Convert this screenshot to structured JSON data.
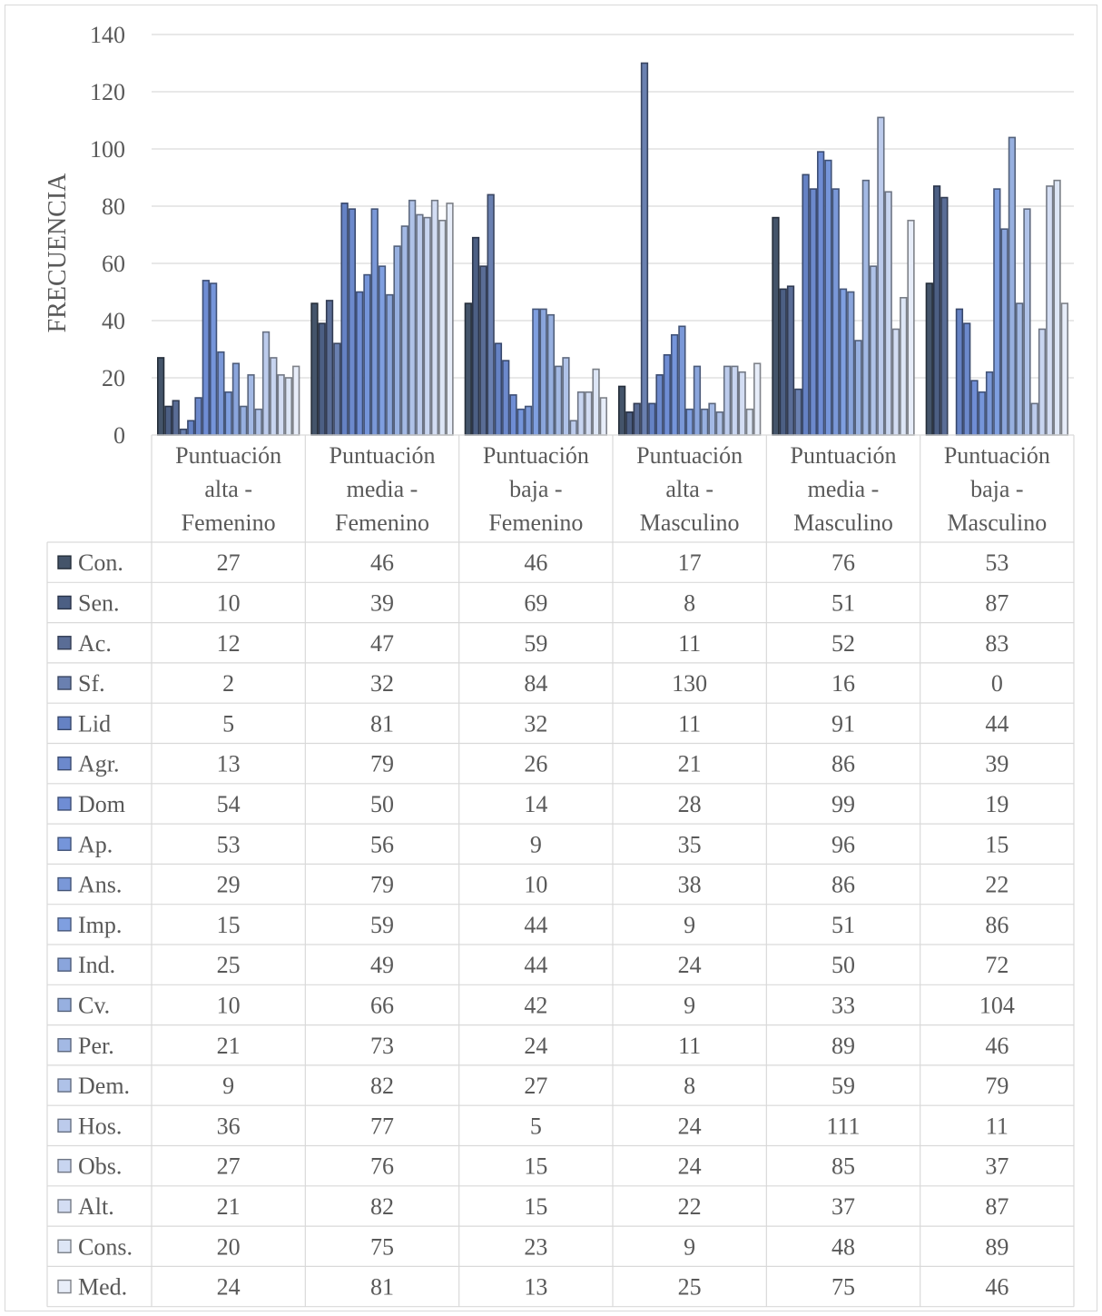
{
  "chart_data": {
    "type": "bar",
    "title": "",
    "xlabel": "",
    "ylabel": "FRECUENCIA",
    "ylim": [
      0,
      140
    ],
    "yticks": [
      0,
      20,
      40,
      60,
      80,
      100,
      120,
      140
    ],
    "grid": true,
    "legend": "data table below chart",
    "categories": [
      [
        "Puntuación",
        "alta -",
        "Femenino"
      ],
      [
        "Puntuación",
        "media -",
        "Femenino"
      ],
      [
        "Puntuación",
        "baja -",
        "Femenino"
      ],
      [
        "Puntuación",
        "alta -",
        "Masculino"
      ],
      [
        "Puntuación",
        "media -",
        "Masculino"
      ],
      [
        "Puntuación",
        "baja -",
        "Masculino"
      ]
    ],
    "series": [
      {
        "name": "Con.",
        "color": "#44546a",
        "values": [
          27,
          46,
          46,
          17,
          76,
          53
        ]
      },
      {
        "name": "Sen.",
        "color": "#4c5f84",
        "values": [
          10,
          39,
          69,
          8,
          51,
          87
        ]
      },
      {
        "name": "Ac.",
        "color": "#5a6d96",
        "values": [
          12,
          47,
          59,
          11,
          52,
          83
        ]
      },
      {
        "name": "Sf.",
        "color": "#6a80b0",
        "values": [
          2,
          32,
          84,
          130,
          16,
          0
        ]
      },
      {
        "name": "Lid",
        "color": "#6582c4",
        "values": [
          5,
          81,
          32,
          11,
          91,
          44
        ]
      },
      {
        "name": "Agr.",
        "color": "#6c89cc",
        "values": [
          13,
          79,
          26,
          21,
          86,
          39
        ]
      },
      {
        "name": "Dom",
        "color": "#6f8dd4",
        "values": [
          54,
          50,
          14,
          28,
          99,
          19
        ]
      },
      {
        "name": "Ap.",
        "color": "#7595da",
        "values": [
          53,
          56,
          9,
          35,
          96,
          15
        ]
      },
      {
        "name": "Ans.",
        "color": "#7a98d8",
        "values": [
          29,
          79,
          10,
          38,
          86,
          22
        ]
      },
      {
        "name": "Imp.",
        "color": "#7f9fe0",
        "values": [
          15,
          59,
          44,
          9,
          51,
          86
        ]
      },
      {
        "name": "Ind.",
        "color": "#8aa5dc",
        "values": [
          25,
          49,
          44,
          24,
          50,
          72
        ]
      },
      {
        "name": "Cv.",
        "color": "#97b0e0",
        "values": [
          10,
          66,
          42,
          9,
          33,
          104
        ]
      },
      {
        "name": "Per.",
        "color": "#a3b9e4",
        "values": [
          21,
          73,
          24,
          11,
          89,
          46
        ]
      },
      {
        "name": "Dem.",
        "color": "#afc2e8",
        "values": [
          9,
          82,
          27,
          8,
          59,
          79
        ]
      },
      {
        "name": "Hos.",
        "color": "#bccbec",
        "values": [
          36,
          77,
          5,
          24,
          111,
          11
        ]
      },
      {
        "name": "Obs.",
        "color": "#c8d5f0",
        "values": [
          27,
          76,
          15,
          24,
          85,
          37
        ]
      },
      {
        "name": "Alt.",
        "color": "#d3ddf3",
        "values": [
          21,
          82,
          15,
          22,
          37,
          87
        ]
      },
      {
        "name": "Cons.",
        "color": "#dde6f6",
        "values": [
          20,
          75,
          23,
          9,
          48,
          89
        ]
      },
      {
        "name": "Med.",
        "color": "#e7edf9",
        "values": [
          24,
          81,
          13,
          25,
          75,
          46
        ]
      }
    ],
    "table_values": [
      [
        "27",
        "46",
        "46",
        "17",
        "76",
        "53"
      ],
      [
        "10",
        "39",
        "69",
        "8",
        "51",
        "87"
      ],
      [
        "12",
        "47",
        "59",
        "11",
        "52",
        "83"
      ],
      [
        "2",
        "32",
        "84",
        "130",
        "16",
        "0"
      ],
      [
        "5",
        "81",
        "32",
        "11",
        "91",
        "44"
      ],
      [
        "13",
        "79",
        "26",
        "21",
        "86",
        "39"
      ],
      [
        "54",
        "50",
        "14",
        "28",
        "99",
        "19"
      ],
      [
        "53",
        "56",
        "9",
        "35",
        "96",
        "15"
      ],
      [
        "29",
        "79",
        "10",
        "38",
        "86",
        "22"
      ],
      [
        "15",
        "59",
        "44",
        "9",
        "51",
        "86"
      ],
      [
        "25",
        "49",
        "44",
        "24",
        "50",
        "72"
      ],
      [
        "10",
        "66",
        "42",
        "9",
        "33",
        "104"
      ],
      [
        "21",
        "73",
        "24",
        "11",
        "89",
        "46"
      ],
      [
        "9",
        "82",
        "27",
        "8",
        "59",
        "79"
      ],
      [
        "36",
        "77",
        "5",
        "24",
        "111",
        "11"
      ],
      [
        "27",
        "76",
        "15",
        "24",
        "85",
        "37"
      ],
      [
        "21",
        "82",
        "15",
        "22",
        "37",
        "87"
      ],
      [
        "20",
        "75",
        "23",
        "9",
        "48",
        "89"
      ],
      [
        "24",
        "81",
        "13",
        "25",
        "75",
        "46"
      ]
    ]
  }
}
